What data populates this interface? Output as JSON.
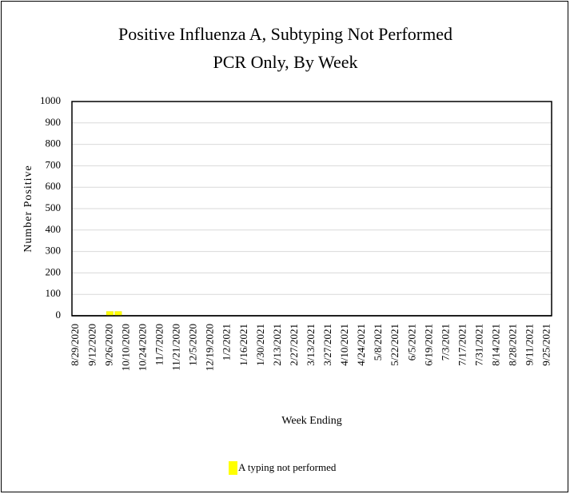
{
  "chart_data": {
    "type": "bar",
    "title": "Positive Influenza A, Subtyping Not Performed",
    "subtitle": "PCR Only, By Week",
    "x_label": "Week Ending",
    "y_label": "Number Positive",
    "categories": [
      "8/29/2020",
      null,
      "9/12/2020",
      null,
      "9/26/2020",
      null,
      "10/10/2020",
      null,
      "10/24/2020",
      null,
      "11/7/2020",
      null,
      "11/21/2020",
      null,
      "12/5/2020",
      null,
      "12/19/2020",
      null,
      "1/2/2021",
      null,
      "1/16/2021",
      null,
      "1/30/2021",
      null,
      "2/13/2021",
      null,
      "2/27/2021",
      null,
      "3/13/2021",
      null,
      "3/27/2021",
      null,
      "4/10/2021",
      null,
      "4/24/2021",
      null,
      "5/8/2021",
      null,
      "5/22/2021",
      null,
      "6/5/2021",
      null,
      "6/19/2021",
      null,
      "7/3/2021",
      null,
      "7/17/2021",
      null,
      "7/31/2021",
      null,
      "8/14/2021",
      null,
      "8/28/2021",
      null,
      "9/11/2021",
      null,
      "9/25/2021"
    ],
    "series": [
      {
        "name": "A typing not performed",
        "color": "#ffff00",
        "values": [
          0,
          0,
          0,
          0,
          20,
          20,
          0,
          0,
          0,
          0,
          0,
          0,
          0,
          0,
          0,
          0,
          0,
          0,
          0,
          0,
          0,
          0,
          0,
          0,
          0,
          0,
          0,
          0,
          0,
          0,
          0,
          0,
          0,
          0,
          0,
          0,
          0,
          0,
          0,
          0,
          0,
          0,
          0,
          0,
          0,
          0,
          0,
          0,
          0,
          0,
          0,
          0,
          0,
          0,
          0,
          0,
          0
        ]
      }
    ],
    "ylim": [
      0,
      1000
    ],
    "yticks": [
      0,
      100,
      200,
      300,
      400,
      500,
      600,
      700,
      800,
      900,
      1000
    ],
    "grid": true,
    "legend": "bottom"
  }
}
